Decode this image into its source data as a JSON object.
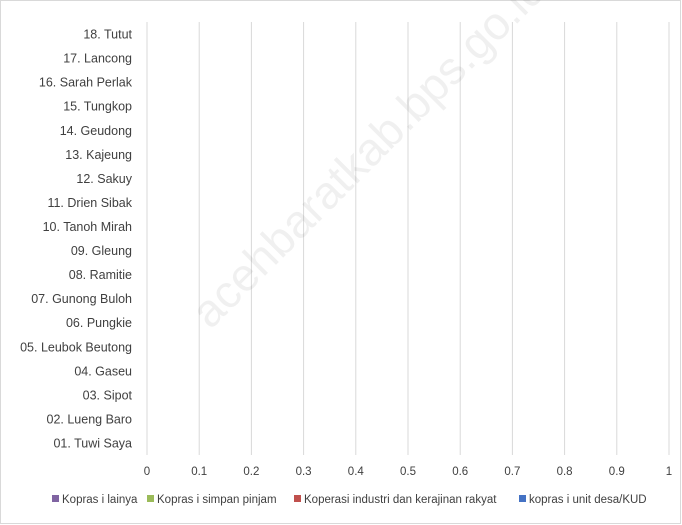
{
  "chart_data": {
    "type": "bar",
    "orientation": "horizontal",
    "stacked": true,
    "categories": [
      "01. Tuwi Saya",
      "02. Lueng Baro",
      "03. Sipot",
      "04. Gaseu",
      "05. Leubok Beutong",
      "06. Pungkie",
      "07. Gunong Buloh",
      "08. Ramitie",
      "09. Gleung",
      "10. Tanoh Mirah",
      "11. Drien Sibak",
      "12. Sakuy",
      "13. Kajeung",
      "14. Geudong",
      "15. Tungkop",
      "16. Sarah Perlak",
      "17. Lancong",
      "18. Tutut"
    ],
    "series": [
      {
        "name": "kopras i unit desa/KUD",
        "color": "#4472c4",
        "values": [
          0,
          0,
          0,
          0,
          0,
          0,
          0,
          0,
          0,
          0,
          0,
          0,
          0,
          0,
          0,
          0,
          0,
          0
        ]
      },
      {
        "name": "Koperasi industri dan kerajinan rakyat",
        "color": "#c0504d",
        "values": [
          0,
          0,
          0,
          0,
          0,
          0,
          0,
          0,
          0,
          0,
          0,
          0,
          0,
          0,
          0,
          0,
          0,
          0
        ]
      },
      {
        "name": "Kopras i simpan pinjam",
        "color": "#9bbb59",
        "values": [
          0,
          0,
          0,
          0,
          0,
          0,
          0,
          0,
          0,
          0,
          0,
          0,
          0,
          0,
          0,
          0,
          0,
          0
        ]
      },
      {
        "name": "Kopras i lainya",
        "color": "#8064a2",
        "values": [
          0,
          0,
          0,
          0,
          0,
          0,
          0,
          0,
          0,
          0,
          0,
          0,
          0,
          0,
          0,
          0,
          0,
          0
        ]
      }
    ],
    "legend_order": [
      3,
      2,
      1,
      0
    ],
    "xticks": [
      "0",
      "0.1",
      "0.2",
      "0.3",
      "0.4",
      "0.5",
      "0.6",
      "0.7",
      "0.8",
      "0.9",
      "1"
    ],
    "xlim": [
      0,
      1
    ],
    "grid": true,
    "legend_position": "bottom",
    "title": "",
    "xlabel": "",
    "ylabel": ""
  },
  "watermark": "acehbaratkab.bps.go.id"
}
